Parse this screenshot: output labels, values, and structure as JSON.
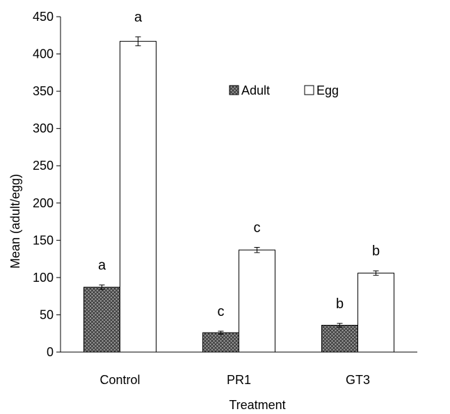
{
  "chart_data": {
    "type": "bar",
    "xlabel": "Treatment",
    "ylabel": "Mean (adult/egg)",
    "ylim": [
      0,
      450
    ],
    "yticks": [
      0,
      50,
      100,
      150,
      200,
      250,
      300,
      350,
      400,
      450
    ],
    "categories": [
      "Control",
      "PR1",
      "GT3"
    ],
    "series": [
      {
        "name": "Adult",
        "values": [
          87,
          26,
          36
        ],
        "errors": [
          3,
          2,
          2.5
        ],
        "letters": [
          "a",
          "c",
          "b"
        ],
        "pattern": "crosshatch",
        "color": "#808080"
      },
      {
        "name": "Egg",
        "values": [
          417,
          137,
          106
        ],
        "errors": [
          6,
          3.5,
          3
        ],
        "letters": [
          "a",
          "c",
          "b"
        ],
        "pattern": "none",
        "color": "#ffffff"
      }
    ],
    "legend": "inside-top-center",
    "grid": false
  }
}
